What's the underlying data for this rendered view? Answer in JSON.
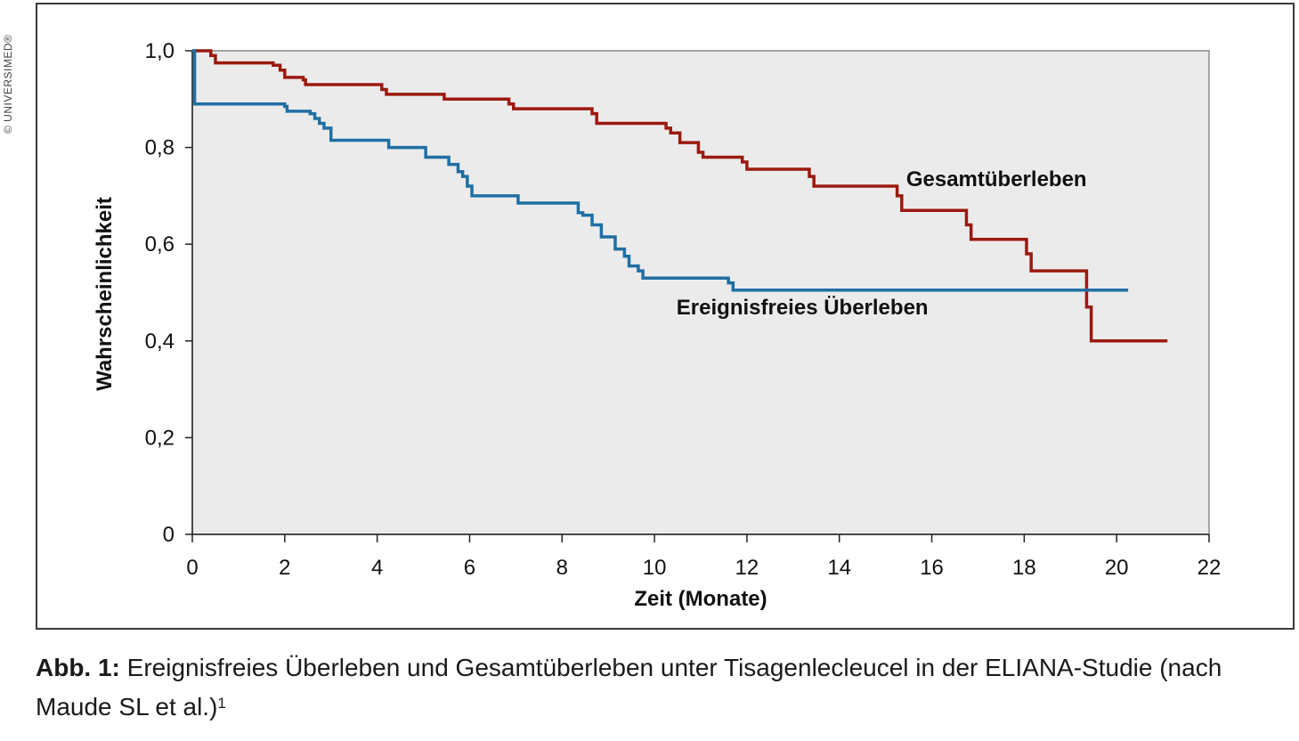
{
  "watermark": "© UNIVERSIMED®",
  "caption": {
    "label": "Abb. 1:",
    "text": " Ereignisfreies Überleben und Gesamtüberleben unter Tisagenlecleucel in der ELIANA-Studie (nach Maude SL et al.)",
    "superscript": "1"
  },
  "chart_data": {
    "type": "line",
    "step": true,
    "title": "",
    "xlabel": "Zeit (Monate)",
    "ylabel": "Wahrscheinlichkeit",
    "xlim": [
      0,
      22
    ],
    "ylim": [
      0,
      1.0
    ],
    "xticks": [
      0,
      2,
      4,
      6,
      8,
      10,
      12,
      14,
      16,
      18,
      20,
      22
    ],
    "yticks": [
      0,
      0.2,
      0.4,
      0.6,
      0.8,
      1.0
    ],
    "ytick_labels": [
      "0",
      "0,2",
      "0,4",
      "0,6",
      "0,8",
      "1,0"
    ],
    "xtick_labels": [
      "0",
      "2",
      "4",
      "6",
      "8",
      "10",
      "12",
      "14",
      "16",
      "18",
      "20",
      "22"
    ],
    "grid": false,
    "legend": "none (direct labels)",
    "plot_background": "#ebebeb",
    "series": [
      {
        "name": "Gesamtüberleben",
        "color": "#9b1a0f",
        "points": [
          [
            0,
            1.0
          ],
          [
            0.4,
            0.99
          ],
          [
            0.5,
            0.975
          ],
          [
            1.75,
            0.97
          ],
          [
            1.9,
            0.96
          ],
          [
            2.0,
            0.945
          ],
          [
            2.4,
            0.94
          ],
          [
            2.45,
            0.93
          ],
          [
            4.1,
            0.92
          ],
          [
            4.2,
            0.91
          ],
          [
            5.35,
            0.91
          ],
          [
            5.45,
            0.9
          ],
          [
            6.85,
            0.89
          ],
          [
            6.95,
            0.88
          ],
          [
            8.65,
            0.87
          ],
          [
            8.75,
            0.85
          ],
          [
            10.25,
            0.84
          ],
          [
            10.35,
            0.83
          ],
          [
            10.55,
            0.81
          ],
          [
            10.95,
            0.79
          ],
          [
            11.05,
            0.78
          ],
          [
            11.9,
            0.77
          ],
          [
            12.0,
            0.755
          ],
          [
            13.35,
            0.74
          ],
          [
            13.45,
            0.72
          ],
          [
            15.25,
            0.7
          ],
          [
            15.35,
            0.67
          ],
          [
            16.75,
            0.64
          ],
          [
            16.85,
            0.61
          ],
          [
            18.05,
            0.58
          ],
          [
            18.15,
            0.545
          ],
          [
            19.35,
            0.47
          ],
          [
            19.45,
            0.4
          ],
          [
            21.1,
            0.4
          ]
        ]
      },
      {
        "name": "Ereignisfreies Überleben",
        "color": "#1f6fa3",
        "points": [
          [
            0,
            1.0
          ],
          [
            0.05,
            0.89
          ],
          [
            2.0,
            0.885
          ],
          [
            2.05,
            0.875
          ],
          [
            2.55,
            0.87
          ],
          [
            2.65,
            0.86
          ],
          [
            2.75,
            0.85
          ],
          [
            2.85,
            0.84
          ],
          [
            3.0,
            0.815
          ],
          [
            4.25,
            0.8
          ],
          [
            5.05,
            0.78
          ],
          [
            5.55,
            0.765
          ],
          [
            5.75,
            0.75
          ],
          [
            5.85,
            0.74
          ],
          [
            5.95,
            0.72
          ],
          [
            6.05,
            0.7
          ],
          [
            7.05,
            0.685
          ],
          [
            8.35,
            0.665
          ],
          [
            8.45,
            0.66
          ],
          [
            8.65,
            0.64
          ],
          [
            8.85,
            0.615
          ],
          [
            9.15,
            0.59
          ],
          [
            9.35,
            0.575
          ],
          [
            9.45,
            0.555
          ],
          [
            9.65,
            0.545
          ],
          [
            9.75,
            0.53
          ],
          [
            11.6,
            0.52
          ],
          [
            11.7,
            0.505
          ],
          [
            20.25,
            0.505
          ]
        ]
      }
    ],
    "annotations": [
      {
        "text": "Gesamtüberleben",
        "x": 17.4,
        "y": 0.72
      },
      {
        "text": "Ereignisfreies Überleben",
        "x": 13.2,
        "y": 0.455
      }
    ]
  }
}
